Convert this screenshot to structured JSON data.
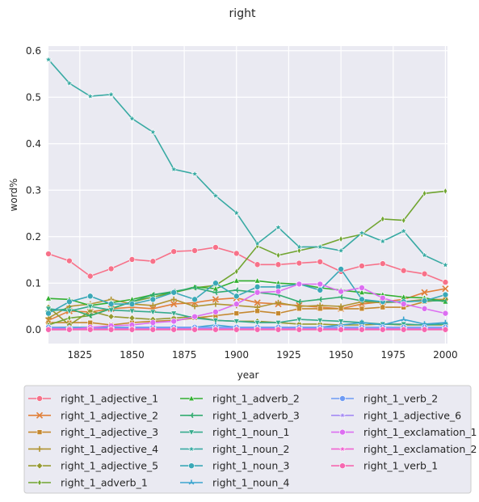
{
  "chart_data": {
    "type": "line",
    "title": "right",
    "xlabel": "year",
    "ylabel": "word%",
    "xlim": [
      1810,
      2001
    ],
    "ylim": [
      -0.03,
      0.61
    ],
    "x_ticks": [
      1825,
      1850,
      1875,
      1900,
      1925,
      1950,
      1975,
      2000
    ],
    "y_ticks": [
      0.0,
      0.1,
      0.2,
      0.3,
      0.4,
      0.5,
      0.6
    ],
    "grid": true,
    "legend_placement": "below",
    "x": [
      1810,
      1820,
      1830,
      1840,
      1850,
      1860,
      1870,
      1880,
      1890,
      1900,
      1910,
      1920,
      1930,
      1940,
      1950,
      1960,
      1970,
      1980,
      1990,
      2000
    ],
    "series": [
      {
        "name": "right_1_adjective_1",
        "color": "#f77189",
        "marker": "circle",
        "values": [
          0.163,
          0.148,
          0.115,
          0.131,
          0.151,
          0.147,
          0.168,
          0.17,
          0.177,
          0.164,
          0.14,
          0.14,
          0.143,
          0.146,
          0.125,
          0.137,
          0.142,
          0.127,
          0.12,
          0.102
        ]
      },
      {
        "name": "right_1_adjective_2",
        "color": "#e1803a",
        "marker": "x",
        "values": [
          0.02,
          0.04,
          0.038,
          0.045,
          0.048,
          0.045,
          0.055,
          0.058,
          0.065,
          0.068,
          0.058,
          0.055,
          0.052,
          0.048,
          0.045,
          0.055,
          0.06,
          0.065,
          0.08,
          0.088
        ]
      },
      {
        "name": "right_1_adjective_3",
        "color": "#c5882f",
        "marker": "square",
        "values": [
          0.015,
          0.015,
          0.015,
          0.01,
          0.015,
          0.018,
          0.02,
          0.025,
          0.03,
          0.035,
          0.04,
          0.035,
          0.045,
          0.045,
          0.045,
          0.045,
          0.048,
          0.048,
          0.06,
          0.065
        ]
      },
      {
        "name": "right_1_adjective_4",
        "color": "#b19432",
        "marker": "plus",
        "values": [
          0.025,
          0.05,
          0.055,
          0.065,
          0.055,
          0.052,
          0.065,
          0.05,
          0.055,
          0.052,
          0.048,
          0.058,
          0.05,
          0.052,
          0.05,
          0.06,
          0.058,
          0.06,
          0.065,
          0.065
        ]
      },
      {
        "name": "right_1_adjective_5",
        "color": "#969a31",
        "marker": "diamond",
        "values": [
          0.048,
          0.01,
          0.04,
          0.028,
          0.025,
          0.022,
          0.025,
          0.028,
          0.02,
          0.018,
          0.018,
          0.015,
          0.012,
          0.012,
          0.01,
          0.01,
          0.012,
          0.01,
          0.01,
          0.01
        ]
      },
      {
        "name": "right_1_adverb_1",
        "color": "#71a531",
        "marker": "thin_diamond",
        "values": [
          0.01,
          0.025,
          0.03,
          0.045,
          0.06,
          0.07,
          0.08,
          0.09,
          0.095,
          0.125,
          0.18,
          0.16,
          0.17,
          0.18,
          0.195,
          0.205,
          0.238,
          0.235,
          0.293,
          0.298
        ]
      },
      {
        "name": "right_1_adverb_2",
        "color": "#33b031",
        "marker": "triangle_up",
        "values": [
          0.067,
          0.065,
          0.052,
          0.058,
          0.065,
          0.075,
          0.08,
          0.092,
          0.088,
          0.105,
          0.105,
          0.1,
          0.098,
          0.09,
          0.085,
          0.08,
          0.075,
          0.07,
          0.068,
          0.06
        ]
      },
      {
        "name": "right_1_adverb_3",
        "color": "#33ac70",
        "marker": "tri_left",
        "values": [
          0.04,
          0.045,
          0.03,
          0.045,
          0.06,
          0.075,
          0.082,
          0.09,
          0.08,
          0.085,
          0.08,
          0.075,
          0.06,
          0.065,
          0.07,
          0.062,
          0.06,
          0.06,
          0.062,
          0.062
        ]
      },
      {
        "name": "right_1_noun_1",
        "color": "#36ab8d",
        "marker": "triangle_down",
        "values": [
          0.045,
          0.04,
          0.05,
          0.042,
          0.04,
          0.038,
          0.035,
          0.025,
          0.02,
          0.018,
          0.015,
          0.015,
          0.022,
          0.02,
          0.018,
          0.015,
          0.012,
          0.012,
          0.01,
          0.012
        ]
      },
      {
        "name": "right_1_noun_2",
        "color": "#38aaa3",
        "marker": "star",
        "values": [
          0.581,
          0.53,
          0.502,
          0.506,
          0.454,
          0.425,
          0.345,
          0.335,
          0.288,
          0.251,
          0.185,
          0.22,
          0.178,
          0.178,
          0.17,
          0.208,
          0.19,
          0.212,
          0.16,
          0.139
        ]
      },
      {
        "name": "right_1_noun_3",
        "color": "#3aa8b7",
        "marker": "hexagon",
        "values": [
          0.035,
          0.06,
          0.072,
          0.055,
          0.055,
          0.065,
          0.08,
          0.065,
          0.1,
          0.072,
          0.092,
          0.092,
          0.098,
          0.085,
          0.13,
          0.065,
          0.06,
          0.06,
          0.062,
          0.075
        ]
      },
      {
        "name": "right_1_noun_4",
        "color": "#3ca5d0",
        "marker": "tri_up",
        "values": [
          0.005,
          0.005,
          0.005,
          0.005,
          0.005,
          0.005,
          0.005,
          0.005,
          0.01,
          0.005,
          0.005,
          0.005,
          0.005,
          0.005,
          0.01,
          0.015,
          0.01,
          0.022,
          0.012,
          0.015
        ]
      },
      {
        "name": "right_1_verb_2",
        "color": "#6e9bf4",
        "marker": "octagon",
        "values": [
          0.005,
          0.003,
          0.003,
          0.003,
          0.005,
          0.005,
          0.005,
          0.005,
          0.005,
          0.005,
          0.005,
          0.005,
          0.005,
          0.005,
          0.005,
          0.005,
          0.005,
          0.005,
          0.005,
          0.005
        ]
      },
      {
        "name": "right_1_adjective_6",
        "color": "#a58af4",
        "marker": "star",
        "values": [
          0.002,
          0.002,
          0.002,
          0.002,
          0.002,
          0.002,
          0.002,
          0.002,
          0.002,
          0.002,
          0.002,
          0.002,
          0.002,
          0.002,
          0.002,
          0.002,
          0.002,
          0.002,
          0.002,
          0.002
        ]
      },
      {
        "name": "right_1_exclamation_1",
        "color": "#dc6ef1",
        "marker": "hexagon",
        "values": [
          0.0,
          0.0,
          0.005,
          0.008,
          0.01,
          0.015,
          0.018,
          0.028,
          0.038,
          0.055,
          0.08,
          0.082,
          0.098,
          0.098,
          0.082,
          0.09,
          0.068,
          0.055,
          0.045,
          0.035
        ]
      },
      {
        "name": "right_1_exclamation_2",
        "color": "#f062d1",
        "marker": "star",
        "values": [
          0.001,
          0.001,
          0.001,
          0.001,
          0.001,
          0.001,
          0.001,
          0.001,
          0.001,
          0.001,
          0.001,
          0.001,
          0.001,
          0.001,
          0.001,
          0.001,
          0.001,
          0.001,
          0.001,
          0.001
        ]
      },
      {
        "name": "right_1_verb_1",
        "color": "#f668b0",
        "marker": "octagon",
        "values": [
          0.0,
          0.0,
          0.0,
          0.0,
          0.0,
          0.0,
          0.0,
          0.0,
          0.0,
          0.0,
          0.0,
          0.0,
          0.0,
          0.0,
          0.0,
          0.0,
          0.0,
          0.0,
          0.0,
          0.0
        ]
      }
    ]
  }
}
